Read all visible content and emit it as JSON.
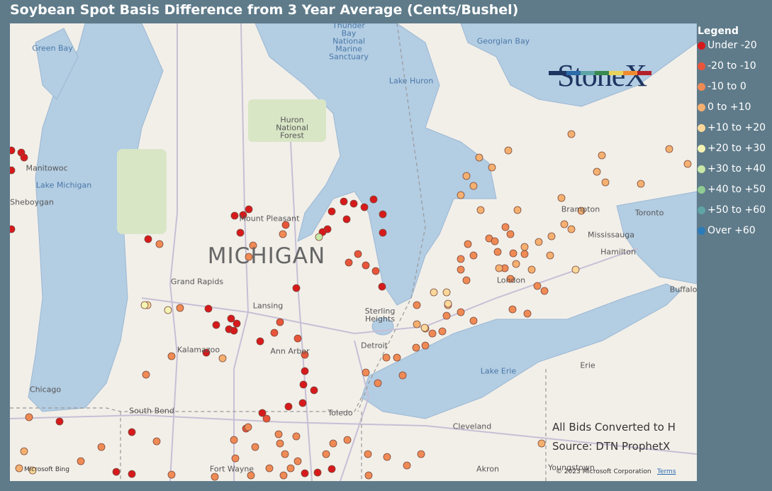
{
  "header": {
    "title": "Soybean Spot Basis Difference from 3 Year Average (Cents/Bushel)"
  },
  "legend": {
    "title": "Legend",
    "items": [
      {
        "label": "Under -20",
        "color": "#d7191c"
      },
      {
        "label": "-20 to -10",
        "color": "#e8553a"
      },
      {
        "label": "-10 to 0",
        "color": "#f08a55"
      },
      {
        "label": "0 to +10",
        "color": "#f5b070"
      },
      {
        "label": "+10 to +20",
        "color": "#fbd89a"
      },
      {
        "label": "+20 to +30",
        "color": "#f4f3b3"
      },
      {
        "label": "+30 to +40",
        "color": "#c9e8a7"
      },
      {
        "label": "+40 to +50",
        "color": "#8fcc91"
      },
      {
        "label": "+50 to +60",
        "color": "#5fa4a6"
      },
      {
        "label": "Over +60",
        "color": "#2b7bba"
      }
    ]
  },
  "logo": "StoneX",
  "map": {
    "labels": [
      "Green Bay",
      "Thunder Bay National Marine Sanctuary",
      "Georgian Bay",
      "Lake Huron",
      "Huron National Forest",
      "Manitowoc",
      "Lake Michigan",
      "Sheboygan",
      "Mount Pleasant",
      "MICHIGAN",
      "Grand Rapids",
      "Lansing",
      "Sterling Heights",
      "Kalamazoo",
      "Ann Arbor",
      "Detroit",
      "Chicago",
      "South Bend",
      "Toledo",
      "Lake Erie",
      "Erie",
      "Cleveland",
      "Akron",
      "Youngstown",
      "Fort Wayne",
      "Brampton",
      "Toronto",
      "Mississauga",
      "Hamilton",
      "London",
      "Buffalo"
    ]
  },
  "notes": [
    "All Bids Converted to H",
    "Source: DTN ProphetX"
  ],
  "attribution": {
    "provider": "Microsoft Bing",
    "copyright": "© 2023 Microsoft Corporation",
    "terms": "Terms"
  }
}
